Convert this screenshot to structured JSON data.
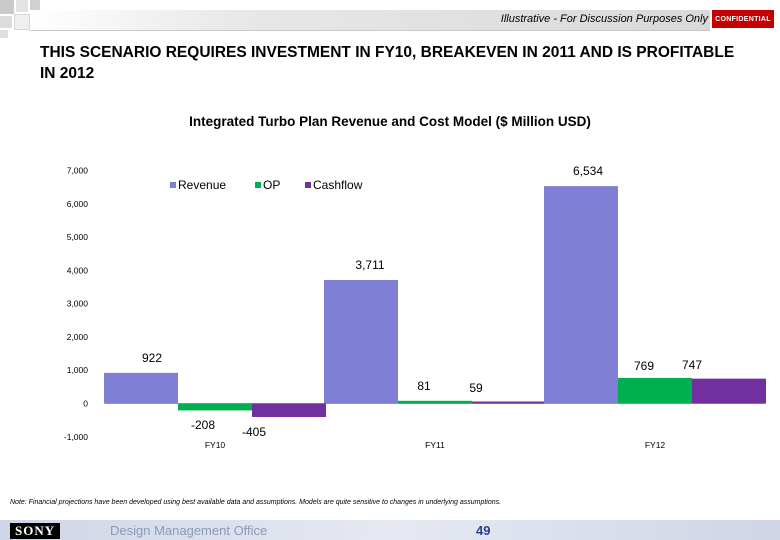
{
  "header": {
    "disclaimer": "Illustrative - For Discussion Purposes Only",
    "confidential_badge": "CONFIDENTIAL"
  },
  "headline": "THIS SCENARIO REQUIRES INVESTMENT IN FY10, BREAKEVEN IN 2011 AND IS PROFITABLE IN 2012",
  "chart_data": {
    "type": "bar",
    "title": "Integrated Turbo Plan Revenue and Cost Model ($ Million USD)",
    "categories": [
      "FY10",
      "FY11",
      "FY12"
    ],
    "series": [
      {
        "name": "Revenue",
        "color": "#7f7fd5",
        "values": [
          922,
          3711,
          6534
        ],
        "labels": [
          "922",
          "3,711",
          "6,534"
        ]
      },
      {
        "name": "OP",
        "color": "#00b050",
        "values": [
          -208,
          81,
          769
        ],
        "labels": [
          "-208",
          "81",
          "769"
        ]
      },
      {
        "name": "Cashflow",
        "color": "#7030a0",
        "values": [
          -405,
          59,
          747
        ],
        "labels": [
          "-405",
          "59",
          "747"
        ]
      }
    ],
    "ylim": [
      -1000,
      7000
    ],
    "yticks": [
      -1000,
      0,
      1000,
      2000,
      3000,
      4000,
      5000,
      6000,
      7000
    ],
    "ytick_labels": [
      "-1,000",
      "0",
      "1,000",
      "2,000",
      "3,000",
      "4,000",
      "5,000",
      "6,000",
      "7,000"
    ],
    "xlabel": "",
    "ylabel": "",
    "legend_position": "top-center",
    "grid": false
  },
  "note": "Note: Financial projections have been developed using best available data and assumptions.  Models are quite sensitive to changes in underlying assumptions.",
  "footer": {
    "logo": "SONY",
    "office": "Design Management Office",
    "page": "49"
  }
}
